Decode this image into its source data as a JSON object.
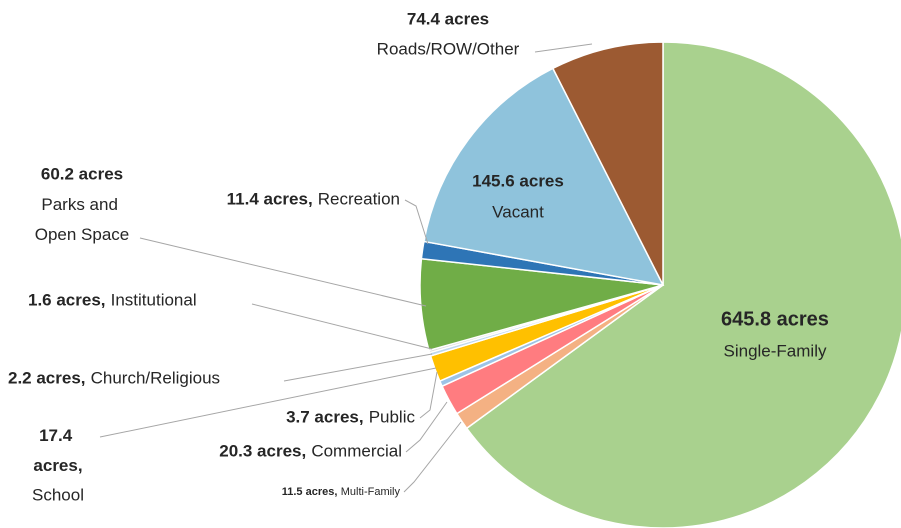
{
  "chart_data": {
    "type": "pie",
    "categories": [
      "Single-Family",
      "Multi-Family",
      "Commercial",
      "Public",
      "School",
      "Church/Religious",
      "Institutional",
      "Parks and Open Space",
      "Recreation",
      "Vacant",
      "Roads/ROW/Other"
    ],
    "values": [
      645.8,
      11.5,
      20.3,
      3.7,
      17.4,
      2.2,
      1.6,
      60.2,
      11.4,
      145.6,
      74.4
    ],
    "value_labels": [
      "645.8 acres",
      "11.5 acres,",
      "20.3 acres,",
      "3.7 acres,",
      "17.4 acres,",
      "2.2 acres,",
      "1.6 acres,",
      "60.2 acres",
      "11.4 acres,",
      "145.6 acres",
      "74.4 acres"
    ],
    "colors": [
      "#a9d18e",
      "#f4b183",
      "#ff7c80",
      "#9dc3e6",
      "#ffc000",
      "#bdd7ee",
      "#d9d9d9",
      "#70ad47",
      "#2e75b6",
      "#8fc3dc",
      "#9c5a32"
    ]
  }
}
